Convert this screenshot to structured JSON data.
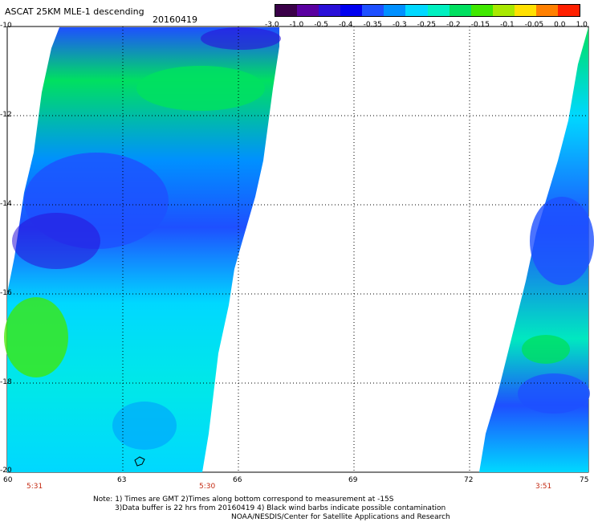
{
  "header": {
    "title": "ASCAT 25KM MLE-1 descending",
    "date": "20160419"
  },
  "colorbar": {
    "ticks": [
      "-3.0",
      "-1.0",
      "-0.5",
      "-0.4",
      "-0.35",
      "-0.3",
      "-0.25",
      "-0.2",
      "-0.15",
      "-0.1",
      "-0.05",
      "0.0",
      "1.0"
    ],
    "colors": [
      "#3a0048",
      "#5a00a0",
      "#2a10d8",
      "#0000f0",
      "#1e50ff",
      "#0090ff",
      "#00d8ff",
      "#00f0c0",
      "#00e060",
      "#40e800",
      "#a8e800",
      "#ffe000",
      "#ff8000",
      "#ff2000"
    ]
  },
  "map": {
    "lat_labels": [
      "-10",
      "-12",
      "-14",
      "-16",
      "-18",
      "-20"
    ],
    "lon_labels": [
      "60",
      "63",
      "66",
      "69",
      "72",
      "75"
    ],
    "time_labels": [
      "5:31",
      "5:30",
      "3:51"
    ]
  },
  "notes": {
    "line1": "Note: 1) Times are GMT 2)Times along bottom correspond to measurement at -15S",
    "line2": "3)Data buffer is 22 hrs from 20160419 4) Black wind barbs indicate possible contamination",
    "line3": "NOAA/NESDIS/Center for Satellite Applications and Research"
  }
}
